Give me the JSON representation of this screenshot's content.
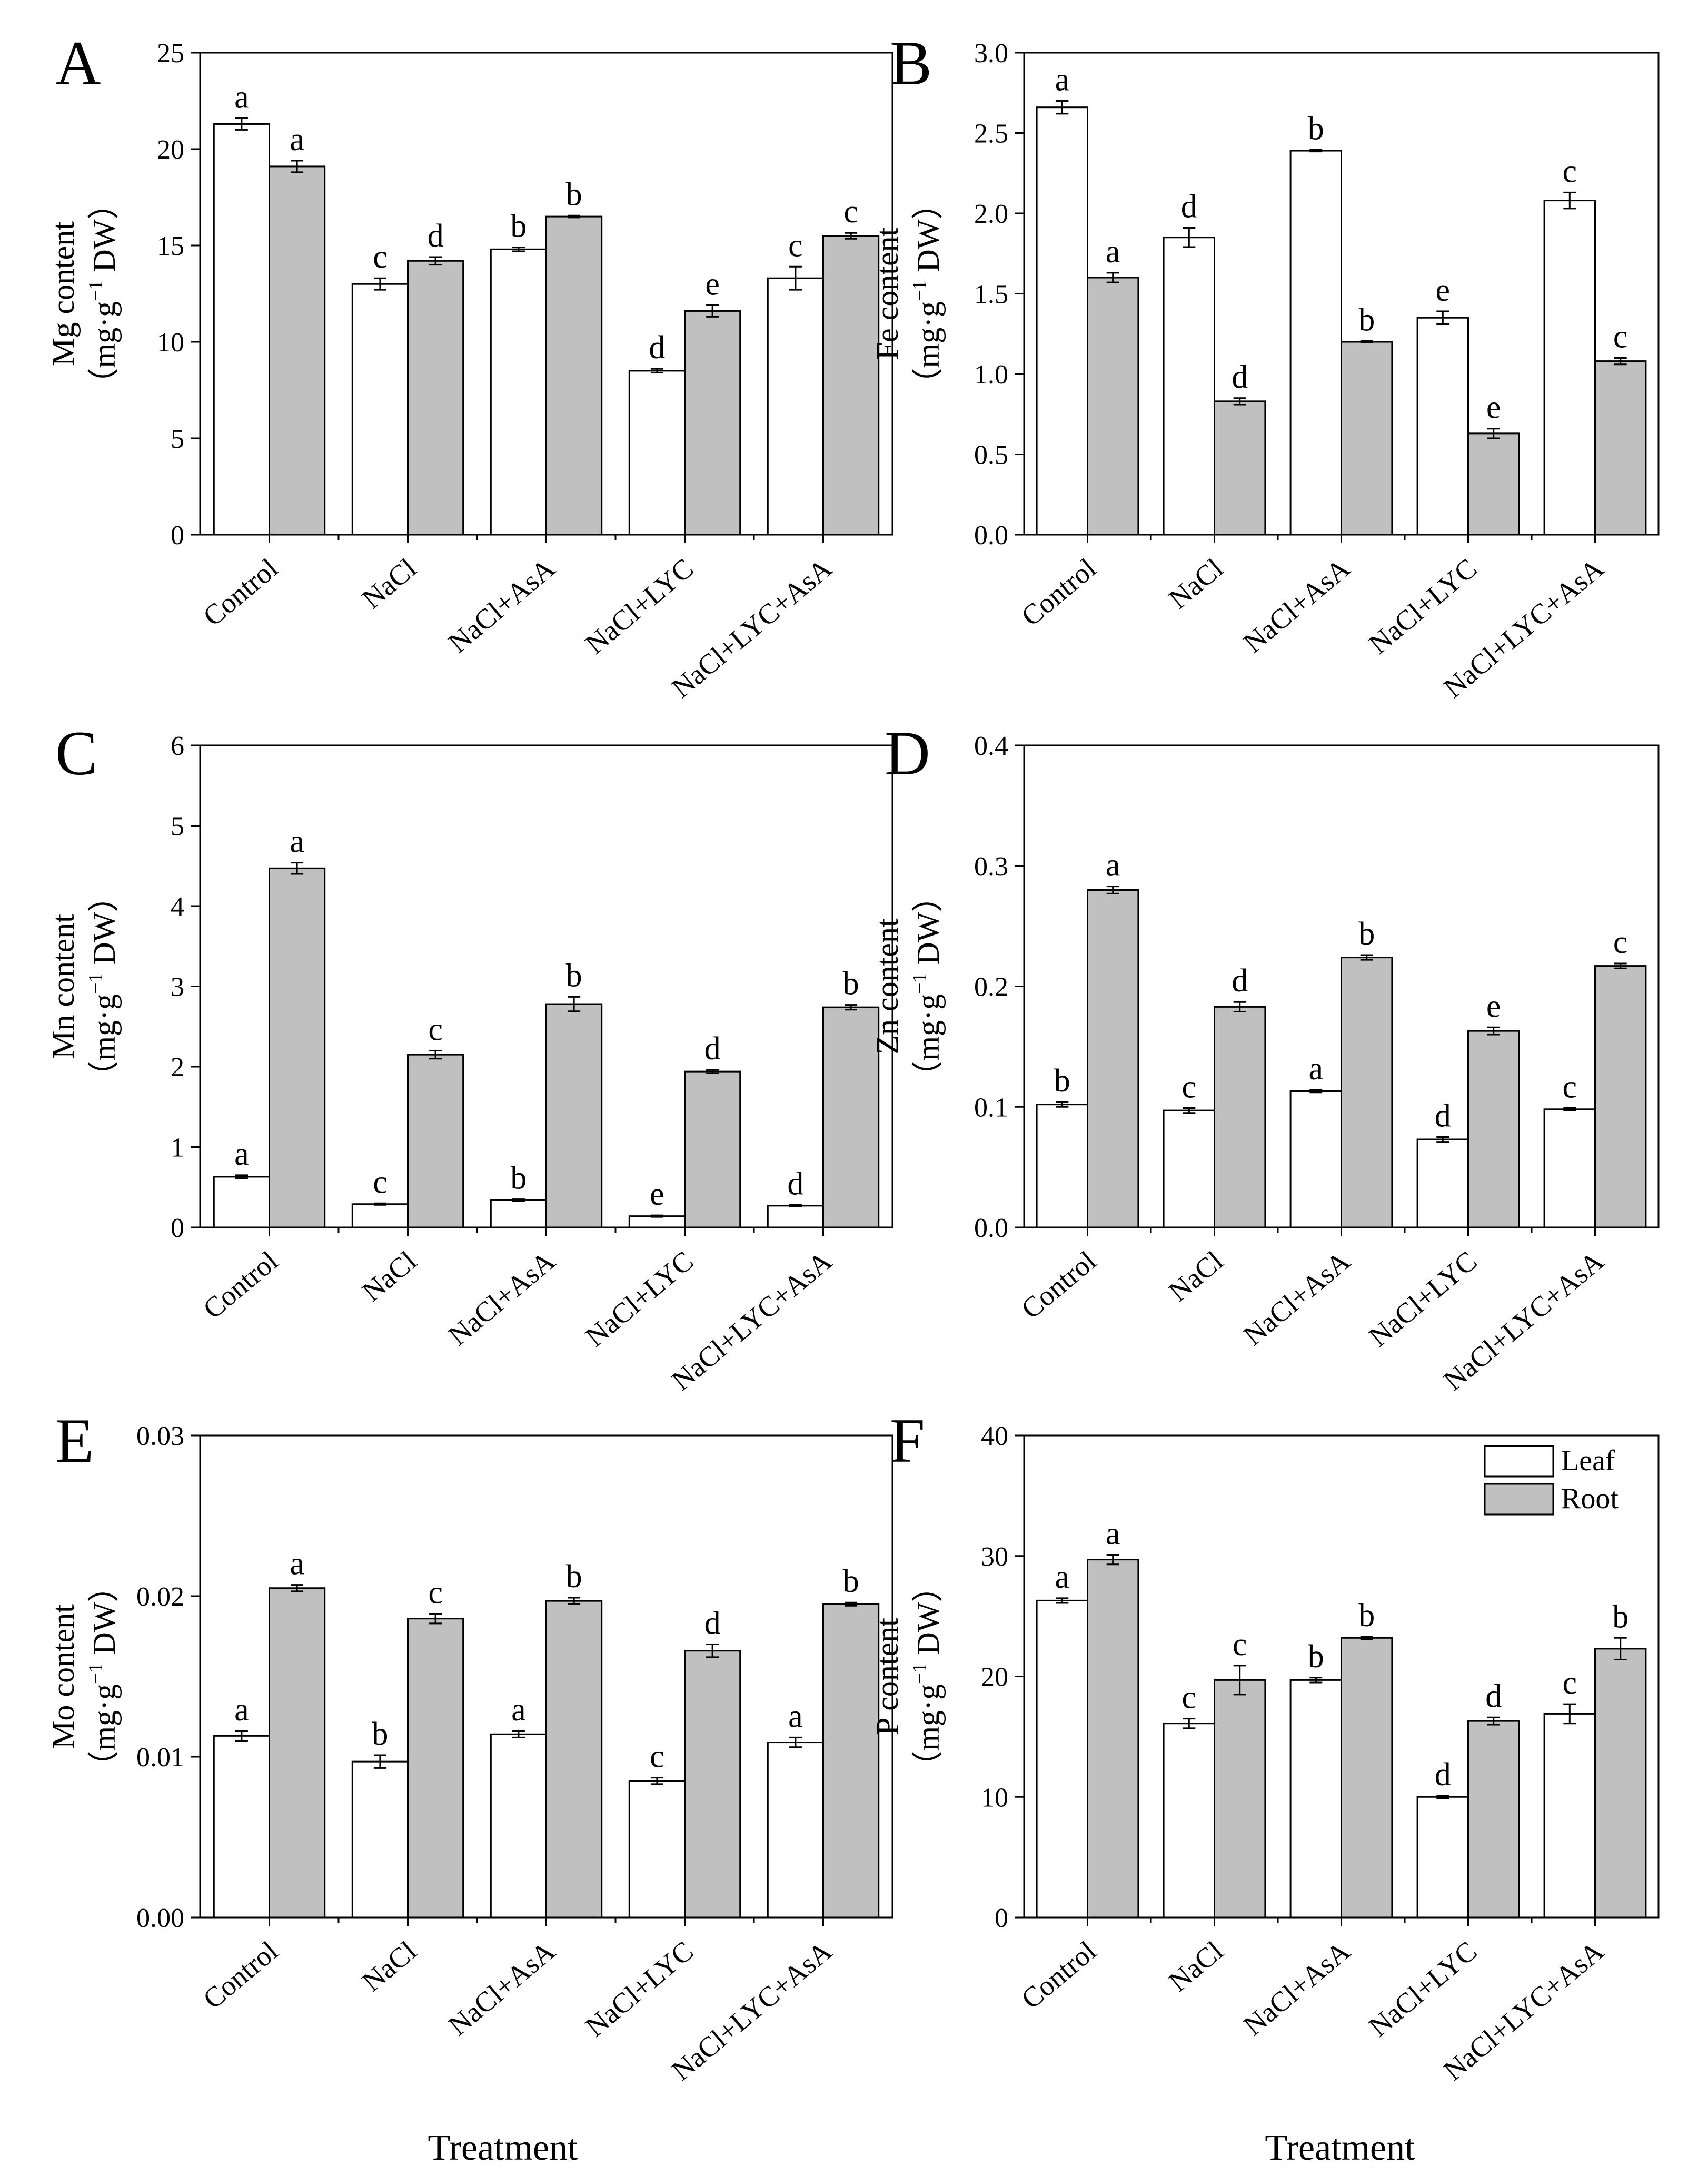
{
  "chart_data": [
    {
      "type": "bar",
      "panel": "A",
      "ylabel_line1": "Mg content",
      "ylabel_line2_prefix": "（mg·g",
      "ylabel_sup": "−1",
      "ylabel_line2_suffix": " DW）",
      "ylim": [
        0,
        25
      ],
      "yticks": [
        0,
        5,
        10,
        15,
        20,
        25
      ],
      "categories": [
        "Control",
        "NaCl",
        "NaCl+AsA",
        "NaCl+LYC",
        "NaCl+LYC+AsA"
      ],
      "series": [
        {
          "name": "Leaf",
          "color": "#ffffff",
          "values": [
            21.3,
            13.0,
            14.8,
            8.5,
            13.3
          ],
          "errors": [
            0.3,
            0.3,
            0.1,
            0.1,
            0.6
          ],
          "letters": [
            "a",
            "c",
            "b",
            "d",
            "c"
          ]
        },
        {
          "name": "Root",
          "color": "#c0c0c0",
          "values": [
            19.1,
            14.2,
            16.5,
            11.6,
            15.5
          ],
          "errors": [
            0.3,
            0.2,
            0.05,
            0.3,
            0.15
          ],
          "letters": [
            "a",
            "d",
            "b",
            "e",
            "c"
          ]
        }
      ]
    },
    {
      "type": "bar",
      "panel": "B",
      "ylabel_line1": "Fe content",
      "ylabel_line2_prefix": "（mg·g",
      "ylabel_sup": "−1",
      "ylabel_line2_suffix": " DW）",
      "ylim": [
        0,
        3.0
      ],
      "yticks": [
        0.0,
        0.5,
        1.0,
        1.5,
        2.0,
        2.5,
        3.0
      ],
      "tick_decimals": 1,
      "categories": [
        "Control",
        "NaCl",
        "NaCl+AsA",
        "NaCl+LYC",
        "NaCl+LYC+AsA"
      ],
      "series": [
        {
          "name": "Leaf",
          "color": "#ffffff",
          "values": [
            2.66,
            1.85,
            2.39,
            1.35,
            2.08
          ],
          "errors": [
            0.04,
            0.06,
            0.005,
            0.04,
            0.05
          ],
          "letters": [
            "a",
            "d",
            "b",
            "e",
            "c"
          ]
        },
        {
          "name": "Root",
          "color": "#c0c0c0",
          "values": [
            1.6,
            0.83,
            1.2,
            0.63,
            1.08
          ],
          "errors": [
            0.03,
            0.02,
            0.005,
            0.03,
            0.02
          ],
          "letters": [
            "a",
            "d",
            "b",
            "e",
            "c"
          ]
        }
      ]
    },
    {
      "type": "bar",
      "panel": "C",
      "ylabel_line1": "Mn content",
      "ylabel_line2_prefix": "（mg·g",
      "ylabel_sup": "−1",
      "ylabel_line2_suffix": " DW）",
      "ylim": [
        0,
        6
      ],
      "yticks": [
        0,
        1,
        2,
        3,
        4,
        5,
        6
      ],
      "categories": [
        "Control",
        "NaCl",
        "NaCl+AsA",
        "NaCl+LYC",
        "NaCl+LYC+AsA"
      ],
      "series": [
        {
          "name": "Leaf",
          "color": "#ffffff",
          "values": [
            0.63,
            0.29,
            0.34,
            0.14,
            0.27
          ],
          "errors": [
            0.02,
            0.01,
            0.01,
            0.01,
            0.01
          ],
          "letters": [
            "a",
            "c",
            "b",
            "e",
            "d"
          ]
        },
        {
          "name": "Root",
          "color": "#c0c0c0",
          "values": [
            4.47,
            2.15,
            2.78,
            1.94,
            2.74
          ],
          "errors": [
            0.07,
            0.05,
            0.09,
            0.02,
            0.03
          ],
          "letters": [
            "a",
            "c",
            "b",
            "d",
            "b"
          ]
        }
      ]
    },
    {
      "type": "bar",
      "panel": "D",
      "ylabel_line1": "Zn content",
      "ylabel_line2_prefix": "（mg·g",
      "ylabel_sup": "−1",
      "ylabel_line2_suffix": " DW）",
      "ylim": [
        0,
        0.4
      ],
      "yticks": [
        0.0,
        0.1,
        0.2,
        0.3,
        0.4
      ],
      "tick_decimals": 1,
      "categories": [
        "Control",
        "NaCl",
        "NaCl+AsA",
        "NaCl+LYC",
        "NaCl+LYC+AsA"
      ],
      "series": [
        {
          "name": "Leaf",
          "color": "#ffffff",
          "values": [
            0.102,
            0.097,
            0.113,
            0.073,
            0.098
          ],
          "errors": [
            0.002,
            0.002,
            0.001,
            0.002,
            0.001
          ],
          "letters": [
            "b",
            "c",
            "a",
            "d",
            "c"
          ]
        },
        {
          "name": "Root",
          "color": "#c0c0c0",
          "values": [
            0.28,
            0.183,
            0.224,
            0.163,
            0.217
          ],
          "errors": [
            0.003,
            0.004,
            0.002,
            0.003,
            0.002
          ],
          "letters": [
            "a",
            "d",
            "b",
            "e",
            "c"
          ]
        }
      ]
    },
    {
      "type": "bar",
      "panel": "E",
      "ylabel_line1": "Mo content",
      "ylabel_line2_prefix": "（mg·g",
      "ylabel_sup": "−1",
      "ylabel_line2_suffix": " DW）",
      "ylim": [
        0,
        0.03
      ],
      "yticks": [
        0.0,
        0.01,
        0.02,
        0.03
      ],
      "tick_decimals": 2,
      "categories": [
        "Control",
        "NaCl",
        "NaCl+AsA",
        "NaCl+LYC",
        "NaCl+LYC+AsA"
      ],
      "series": [
        {
          "name": "Leaf",
          "color": "#ffffff",
          "values": [
            0.0113,
            0.0097,
            0.0114,
            0.0085,
            0.0109
          ],
          "errors": [
            0.0003,
            0.0004,
            0.0002,
            0.0002,
            0.0003
          ],
          "letters": [
            "a",
            "b",
            "a",
            "c",
            "a"
          ]
        },
        {
          "name": "Root",
          "color": "#c0c0c0",
          "values": [
            0.0205,
            0.0186,
            0.0197,
            0.0166,
            0.0195
          ],
          "errors": [
            0.0002,
            0.0003,
            0.0002,
            0.0004,
            0.0001
          ],
          "letters": [
            "a",
            "c",
            "b",
            "d",
            "b"
          ]
        }
      ]
    },
    {
      "type": "bar",
      "panel": "F",
      "ylabel_line1": "P content",
      "ylabel_line2_prefix": "（mg·g",
      "ylabel_sup": "−1",
      "ylabel_line2_suffix": " DW）",
      "ylim": [
        0,
        40
      ],
      "yticks": [
        0,
        10,
        20,
        30,
        40
      ],
      "categories": [
        "Control",
        "NaCl",
        "NaCl+AsA",
        "NaCl+LYC",
        "NaCl+LYC+AsA"
      ],
      "series": [
        {
          "name": "Leaf",
          "color": "#ffffff",
          "values": [
            26.3,
            16.1,
            19.7,
            10.0,
            16.9
          ],
          "errors": [
            0.2,
            0.4,
            0.2,
            0.1,
            0.8
          ],
          "letters": [
            "a",
            "c",
            "b",
            "d",
            "c"
          ]
        },
        {
          "name": "Root",
          "color": "#c0c0c0",
          "values": [
            29.7,
            19.7,
            23.2,
            16.3,
            22.3
          ],
          "errors": [
            0.4,
            1.2,
            0.1,
            0.3,
            0.9
          ],
          "letters": [
            "a",
            "c",
            "b",
            "d",
            "b"
          ]
        }
      ],
      "legend": {
        "position": "top-right",
        "items": [
          "Leaf",
          "Root"
        ]
      }
    }
  ],
  "xlabel": "Treatment"
}
